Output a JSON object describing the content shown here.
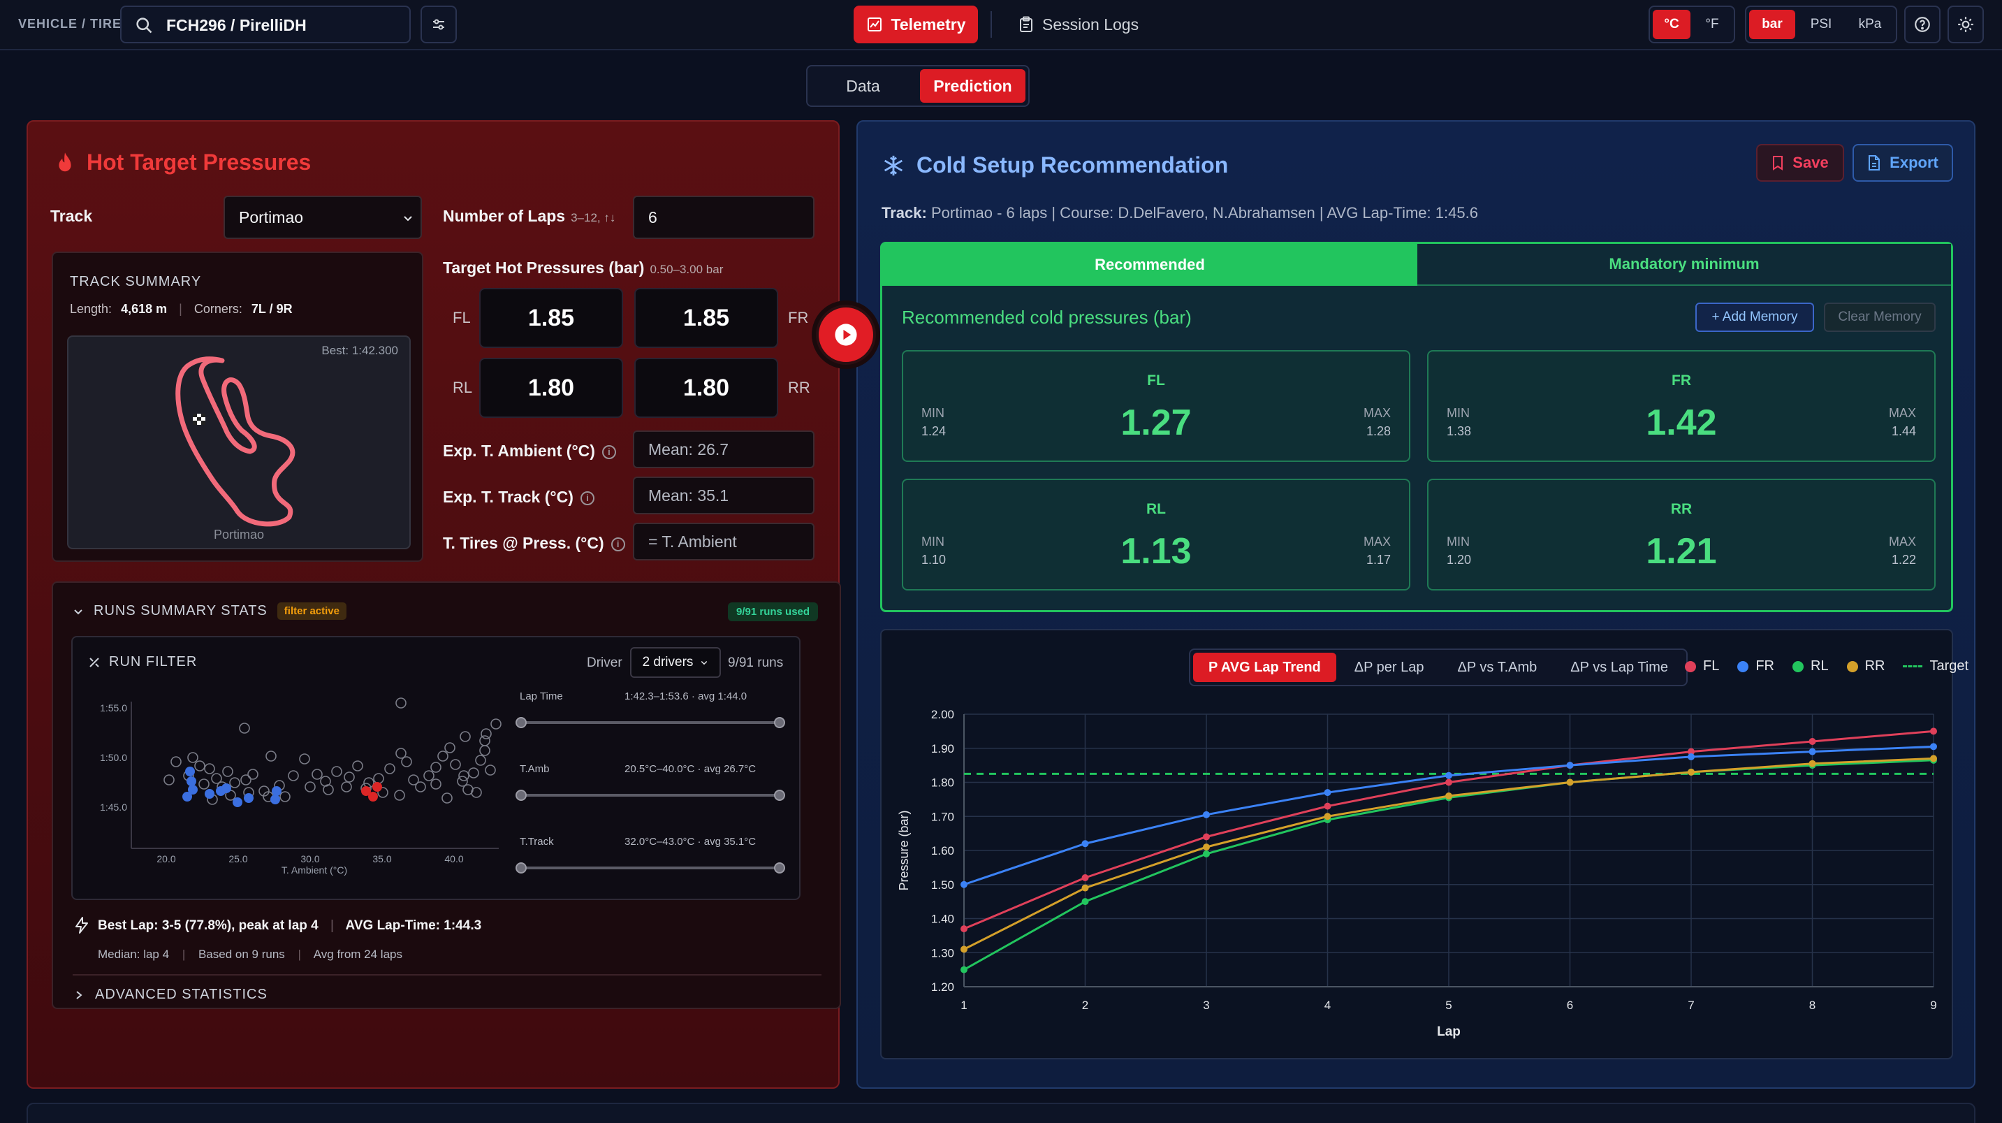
{
  "topbar": {
    "vehicle_tire_label": "VEHICLE / TIRE",
    "search_value": "FCH296 / PirelliDH",
    "telemetry_label": "Telemetry",
    "session_logs_label": "Session Logs",
    "temp_units": [
      "°C",
      "°F"
    ],
    "temp_selected": "°C",
    "pressure_units": [
      "bar",
      "PSI",
      "kPa"
    ],
    "pressure_selected": "bar"
  },
  "mode_tabs": {
    "data": "Data",
    "prediction": "Prediction",
    "selected": "Prediction"
  },
  "hot": {
    "title": "Hot Target Pressures",
    "track_label": "Track",
    "track_value": "Portimao",
    "laps_label": "Number of Laps",
    "laps_hint": "3–12, ↑↓",
    "laps_value": "6",
    "target_label": "Target Hot Pressures (bar)",
    "target_hint": "0.50–3.00 bar",
    "corners": {
      "fl": "FL",
      "fr": "FR",
      "rl": "RL",
      "rr": "RR"
    },
    "fl": "1.85",
    "fr": "1.85",
    "rl": "1.80",
    "rr": "1.80",
    "amb_label": "Exp. T. Ambient (°C)",
    "amb_value": "Mean: 26.7",
    "track_temp_label": "Exp. T. Track (°C)",
    "track_temp_value": "Mean: 35.1",
    "tires_label": "T. Tires @ Press. (°C)",
    "tires_value": "= T. Ambient"
  },
  "track_summary": {
    "heading": "TRACK SUMMARY",
    "length_label": "Length:",
    "length_value": "4,618 m",
    "corners_label": "Corners:",
    "corners_value": "7L / 9R",
    "best": "Best: 1:42.300",
    "map_name": "Portimao"
  },
  "runs": {
    "heading": "RUNS SUMMARY STATS",
    "filter_badge": "filter active",
    "runs_used": "9/91 runs used",
    "run_filter_heading": "RUN FILTER",
    "driver_label": "Driver",
    "driver_value": "2 drivers",
    "runs_count": "9/91 runs",
    "scatter": {
      "y_ticks": [
        "1:55.0",
        "1:50.0",
        "1:45.0"
      ],
      "x_ticks": [
        "20.0",
        "25.0",
        "30.0",
        "35.0",
        "40.0"
      ],
      "xlabel": "T. Ambient (°C)"
    },
    "sliders": [
      {
        "name": "Lap Time",
        "range": "1:42.3–1:53.6 · avg 1:44.0"
      },
      {
        "name": "T.Amb",
        "range": "20.5°C–40.0°C · avg 26.7°C"
      },
      {
        "name": "T.Track",
        "range": "32.0°C–43.0°C · avg 35.1°C"
      }
    ],
    "best_lap": "Best Lap: 3-5 (77.8%), peak at lap 4",
    "avg_lap_time": "AVG Lap-Time: 1:44.3",
    "median": "Median: lap 4",
    "based_on": "Based on 9 runs",
    "avg_from": "Avg from 24 laps",
    "advanced": "ADVANCED STATISTICS"
  },
  "cold": {
    "title": "Cold Setup Recommendation",
    "save_label": "Save",
    "export_label": "Export",
    "meta_track_label": "Track:",
    "meta_rest": "Portimao - 6 laps  | Course: D.DelFavero, N.Abrahamsen  | AVG Lap-Time: 1:45.6",
    "tab_recommended": "Recommended",
    "tab_mandatory": "Mandatory minimum",
    "rec_heading": "Recommended cold pressures (bar)",
    "add_memory": "+ Add Memory",
    "clear_memory": "Clear Memory",
    "min_label": "MIN",
    "max_label": "MAX",
    "cards": [
      {
        "name": "FL",
        "value": "1.27",
        "min": "1.24",
        "max": "1.28"
      },
      {
        "name": "FR",
        "value": "1.42",
        "min": "1.38",
        "max": "1.44"
      },
      {
        "name": "RL",
        "value": "1.13",
        "min": "1.10",
        "max": "1.17"
      },
      {
        "name": "RR",
        "value": "1.21",
        "min": "1.20",
        "max": "1.22"
      }
    ]
  },
  "chart_tabs": [
    "P AVG Lap Trend",
    "ΔP per Lap",
    "ΔP vs T.Amb",
    "ΔP vs Lap Time"
  ],
  "chart_tab_selected": "P AVG Lap Trend",
  "colors": {
    "fl": "#e0405a",
    "fr": "#3b82f6",
    "rl": "#22c55e",
    "rr": "#d4a02a",
    "target": "#22c55e"
  },
  "chart_data": {
    "type": "line",
    "title": "",
    "xlabel": "Lap",
    "ylabel": "Pressure (bar)",
    "x": [
      1,
      2,
      3,
      4,
      5,
      6,
      7,
      8,
      9
    ],
    "ylim": [
      1.2,
      2.0
    ],
    "y_ticks": [
      "1.20",
      "1.30",
      "1.40",
      "1.50",
      "1.60",
      "1.70",
      "1.80",
      "1.90",
      "2.00"
    ],
    "grid": true,
    "legend": "top-right",
    "target": 1.825,
    "target_name": "Target",
    "series": [
      {
        "name": "FL",
        "values": [
          1.37,
          1.52,
          1.64,
          1.73,
          1.8,
          1.85,
          1.89,
          1.92,
          1.95
        ]
      },
      {
        "name": "FR",
        "values": [
          1.5,
          1.62,
          1.705,
          1.77,
          1.82,
          1.85,
          1.875,
          1.89,
          1.905
        ]
      },
      {
        "name": "RL",
        "values": [
          1.25,
          1.45,
          1.59,
          1.69,
          1.755,
          1.8,
          1.83,
          1.85,
          1.865
        ]
      },
      {
        "name": "RR",
        "values": [
          1.31,
          1.49,
          1.61,
          1.7,
          1.76,
          1.8,
          1.83,
          1.855,
          1.87
        ]
      }
    ]
  }
}
